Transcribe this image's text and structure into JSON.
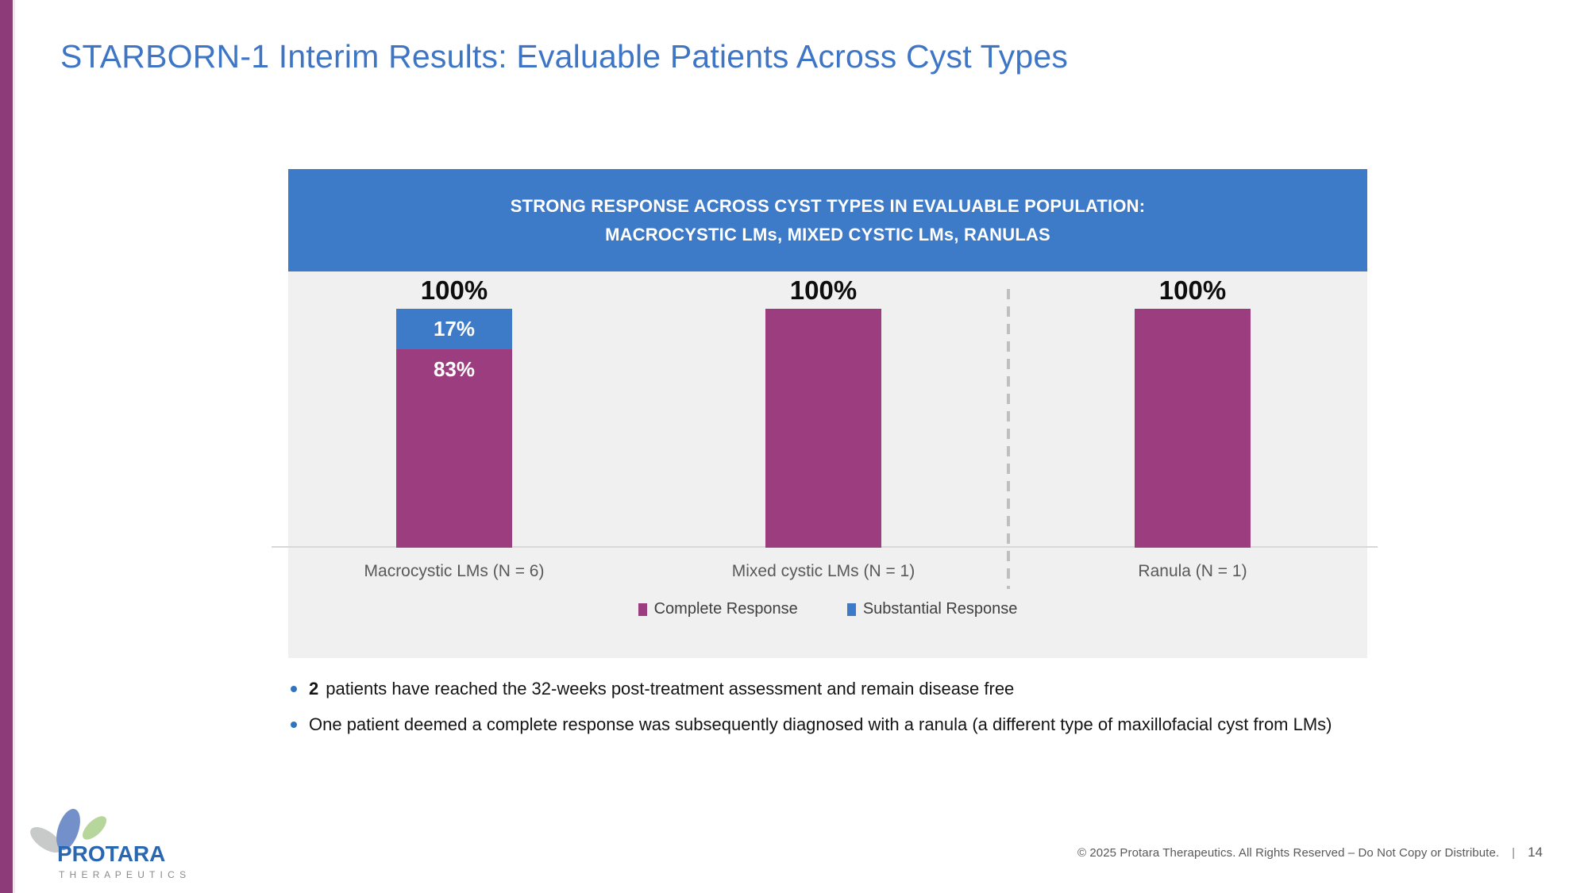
{
  "slide": {
    "title": "STARBORN-1 Interim Results: Evaluable Patients Across Cyst Types"
  },
  "colors": {
    "accent_blue": "#3D7BC8",
    "accent_purple": "#9C3D7F",
    "stripe_purple": "#8D3B79",
    "plot_background": "#F0F0F0",
    "title_blue": "#3E76C5"
  },
  "chart_data": {
    "type": "bar",
    "stacked": true,
    "title_lines": [
      "STRONG RESPONSE ACROSS CYST TYPES IN EVALUABLE POPULATION:",
      "MACROCYSTIC LMs, MIXED CYSTIC LMs, RANULAS"
    ],
    "categories": [
      "Macrocystic LMs (N = 6)",
      "Mixed cystic LMs (N = 1)",
      "Ranula (N = 1)"
    ],
    "series": [
      {
        "name": "Complete Response",
        "color": "#9C3D7F",
        "values": [
          83,
          100,
          100
        ],
        "labels": [
          "83%",
          "",
          ""
        ]
      },
      {
        "name": "Substantial Response",
        "color": "#3D7BC8",
        "values": [
          17,
          0,
          0
        ],
        "labels": [
          "17%",
          "",
          ""
        ]
      }
    ],
    "bar_total_labels": [
      "100%",
      "100%",
      "100%"
    ],
    "ylim": [
      0,
      100
    ],
    "grid": false,
    "legend_position": "bottom",
    "divider_after_category_index": 1
  },
  "bullets": [
    {
      "bold_prefix": "2",
      "text": "patients have reached the 32-weeks post-treatment assessment and remain disease free"
    },
    {
      "bold_prefix": "",
      "text": "One patient deemed a complete response was subsequently diagnosed with a ranula (a different type of maxillofacial cyst from LMs)"
    }
  ],
  "logo": {
    "name": "PROTARA",
    "subtitle": "T H E R A P E U T I C S"
  },
  "footer": {
    "copyright": "© 2025 Protara Therapeutics. All Rights Reserved – Do Not Copy or Distribute.",
    "separator": "|",
    "page_number": "14"
  }
}
